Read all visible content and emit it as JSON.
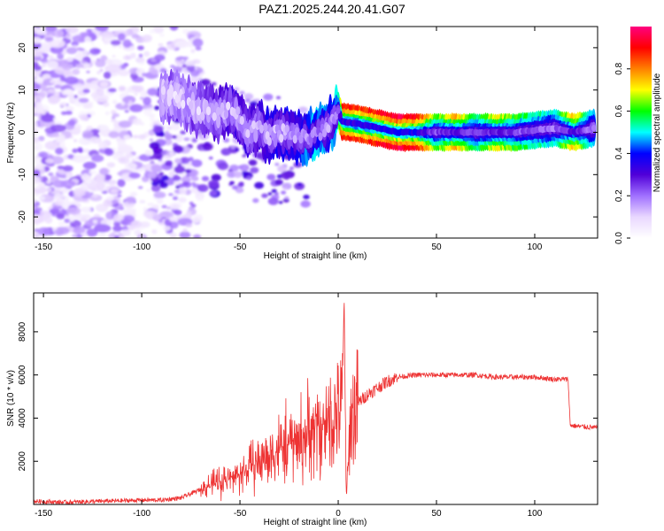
{
  "title": "PAZ1.2025.244.20.41.G07",
  "chart_data": [
    {
      "type": "heatmap",
      "xlabel": "Height of straight line (km)",
      "ylabel": "Frequency (Hz)",
      "xlim": [
        -155,
        132
      ],
      "ylim": [
        -25,
        25
      ],
      "x_ticks": [
        -150,
        -100,
        -50,
        0,
        50,
        100
      ],
      "y_ticks": [
        -20,
        -10,
        0,
        10,
        20
      ],
      "colorbar": {
        "label": "Normalized spectral amplitude",
        "range": [
          0,
          1
        ],
        "ticks": [
          0.0,
          0.2,
          0.4,
          0.6,
          0.8
        ],
        "tick_labels": [
          "0.0",
          "0.2",
          "0.4",
          "0.6",
          "0.8"
        ],
        "colormap": [
          "#ffffff",
          "#e9d7ff",
          "#a070ff",
          "#5000d8",
          "#0000ff",
          "#00ffff",
          "#00ff00",
          "#ffff00",
          "#ff8000",
          "#ff0000",
          "#ff0080"
        ]
      },
      "ridge": [
        {
          "x": -90,
          "y": 9,
          "amp": 0.2
        },
        {
          "x": -80,
          "y": 8,
          "amp": 0.22
        },
        {
          "x": -70,
          "y": 5,
          "amp": 0.25
        },
        {
          "x": -60,
          "y": 4,
          "amp": 0.28
        },
        {
          "x": -55,
          "y": 6,
          "amp": 0.3
        },
        {
          "x": -50,
          "y": 3,
          "amp": 0.3
        },
        {
          "x": -45,
          "y": 0,
          "amp": 0.3
        },
        {
          "x": -40,
          "y": 1,
          "amp": 0.32
        },
        {
          "x": -35,
          "y": -1,
          "amp": 0.35
        },
        {
          "x": -30,
          "y": 0,
          "amp": 0.35
        },
        {
          "x": -25,
          "y": 0,
          "amp": 0.38
        },
        {
          "x": -20,
          "y": -1,
          "amp": 0.4
        },
        {
          "x": -15,
          "y": -1,
          "amp": 0.45
        },
        {
          "x": -10,
          "y": 0,
          "amp": 0.5
        },
        {
          "x": -5,
          "y": 1,
          "amp": 0.4
        },
        {
          "x": 0,
          "y": 5,
          "amp": 0.5
        },
        {
          "x": 2,
          "y": 2.5,
          "amp": 0.9
        },
        {
          "x": 10,
          "y": 2,
          "amp": 0.85
        },
        {
          "x": 20,
          "y": 1,
          "amp": 0.9
        },
        {
          "x": 30,
          "y": 0,
          "amp": 0.95
        },
        {
          "x": 40,
          "y": 0,
          "amp": 0.9
        },
        {
          "x": 50,
          "y": 0,
          "amp": 0.6
        },
        {
          "x": 60,
          "y": 0,
          "amp": 0.75
        },
        {
          "x": 70,
          "y": 0,
          "amp": 0.55
        },
        {
          "x": 80,
          "y": 0,
          "amp": 0.7
        },
        {
          "x": 90,
          "y": 0,
          "amp": 0.6
        },
        {
          "x": 100,
          "y": 0.5,
          "amp": 0.55
        },
        {
          "x": 110,
          "y": 1,
          "amp": 0.5
        },
        {
          "x": 120,
          "y": 0,
          "amp": 0.75
        },
        {
          "x": 130,
          "y": 1,
          "amp": 0.45
        }
      ]
    },
    {
      "type": "line",
      "xlabel": "Height of straight line (km)",
      "ylabel": "SNR (10 * v/v)",
      "xlim": [
        -155,
        132
      ],
      "ylim": [
        0,
        9800
      ],
      "x_ticks": [
        -150,
        -100,
        -50,
        0,
        50,
        100
      ],
      "y_ticks": [
        2000,
        4000,
        6000,
        8000
      ],
      "color": "#ee3333",
      "series": [
        {
          "x": [
            -155,
            -140,
            -120,
            -100,
            -90,
            -80,
            -75,
            -70,
            -65,
            -60,
            -55,
            -50,
            -45,
            -40,
            -35,
            -30,
            -25,
            -20,
            -15,
            -12,
            -10,
            -8,
            -5,
            -2,
            0,
            2,
            3,
            4,
            5,
            6,
            8,
            10,
            15,
            20,
            25,
            30,
            40,
            50,
            60,
            70,
            80,
            90,
            100,
            110,
            117,
            118,
            119,
            125,
            132
          ],
          "y": [
            150,
            100,
            150,
            200,
            200,
            300,
            500,
            700,
            900,
            1100,
            1200,
            1400,
            1700,
            2000,
            2300,
            2600,
            2800,
            3000,
            3300,
            3500,
            3600,
            3700,
            3900,
            4100,
            4300,
            4500,
            9700,
            600,
            1400,
            3800,
            4300,
            4700,
            5100,
            5400,
            5700,
            5900,
            6000,
            6000,
            6000,
            6000,
            5900,
            5900,
            5900,
            5800,
            5800,
            3700,
            3650,
            3600,
            3550
          ]
        }
      ]
    }
  ]
}
